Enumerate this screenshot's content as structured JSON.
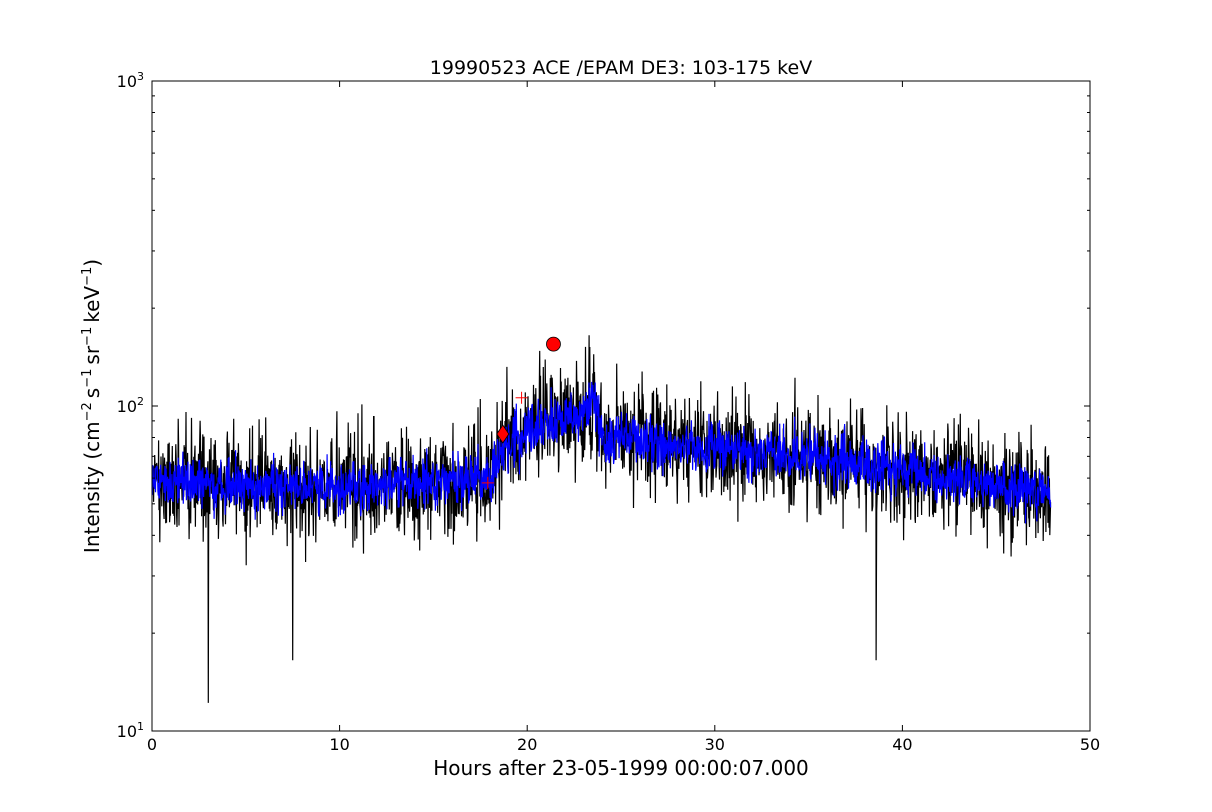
{
  "chart_data": {
    "type": "line",
    "title": "19990523 ACE /EPAM DE3: 103-175 keV",
    "xlabel": "Hours after 23-05-1999 00:00:07.000",
    "ylabel_parts": [
      "Intensity (cm",
      "−2",
      "s",
      "−1",
      "sr",
      "−1",
      "keV",
      "−1",
      ")"
    ],
    "xlim": [
      0,
      50
    ],
    "ylim": [
      10,
      1000
    ],
    "yscale": "log",
    "grid": false,
    "x_ticks": [
      0,
      10,
      20,
      30,
      40,
      50
    ],
    "x_tick_labels": [
      "0",
      "10",
      "20",
      "30",
      "40",
      "50"
    ],
    "y_major_ticks": [
      10,
      100,
      1000
    ],
    "y_tick_labels": [
      {
        "base": "10",
        "exp": "1"
      },
      {
        "base": "10",
        "exp": "2"
      },
      {
        "base": "10",
        "exp": "3"
      }
    ],
    "data_x_range": [
      0,
      47.9
    ],
    "series": [
      {
        "style": "raw-intensity",
        "color": "#000000",
        "profile": {
          "hours": [
            0,
            5,
            10,
            14,
            16,
            18,
            19,
            20,
            21,
            22,
            23,
            23.6,
            24.2,
            25,
            28,
            32,
            36,
            40,
            44,
            46,
            47.9
          ],
          "intensity": [
            58,
            57,
            56,
            58,
            58,
            62,
            76,
            84,
            88,
            92,
            96,
            100,
            74,
            82,
            76,
            72,
            68,
            64,
            58,
            55,
            54
          ]
        },
        "notable_extremes": [
          {
            "hour": 3.0,
            "intensity": 12.2
          },
          {
            "hour": 7.5,
            "intensity": 16.5
          },
          {
            "hour": 38.6,
            "intensity": 16.5
          },
          {
            "hour": 23.3,
            "intensity": 165
          }
        ]
      },
      {
        "style": "smoothed-intensity",
        "color": "#0000ff",
        "profile": {
          "hours": [
            0,
            5,
            10,
            14,
            16,
            18,
            19,
            20,
            21,
            22,
            23,
            23.6,
            24.2,
            25,
            28,
            32,
            36,
            40,
            44,
            46,
            47.9
          ],
          "intensity": [
            58,
            57,
            56,
            58,
            58,
            62,
            76,
            84,
            88,
            92,
            96,
            100,
            74,
            82,
            76,
            72,
            68,
            64,
            58,
            55,
            54
          ]
        }
      }
    ],
    "markers": [
      {
        "shape": "plus",
        "x": 17.9,
        "y": 58,
        "color": "#ff0000"
      },
      {
        "shape": "plus",
        "x": 19.7,
        "y": 106,
        "color": "#ff0000"
      },
      {
        "shape": "diamond",
        "x": 18.7,
        "y": 82,
        "color": "#ff0000"
      },
      {
        "shape": "circle",
        "x": 21.4,
        "y": 155,
        "color": "#ff0000"
      }
    ]
  }
}
